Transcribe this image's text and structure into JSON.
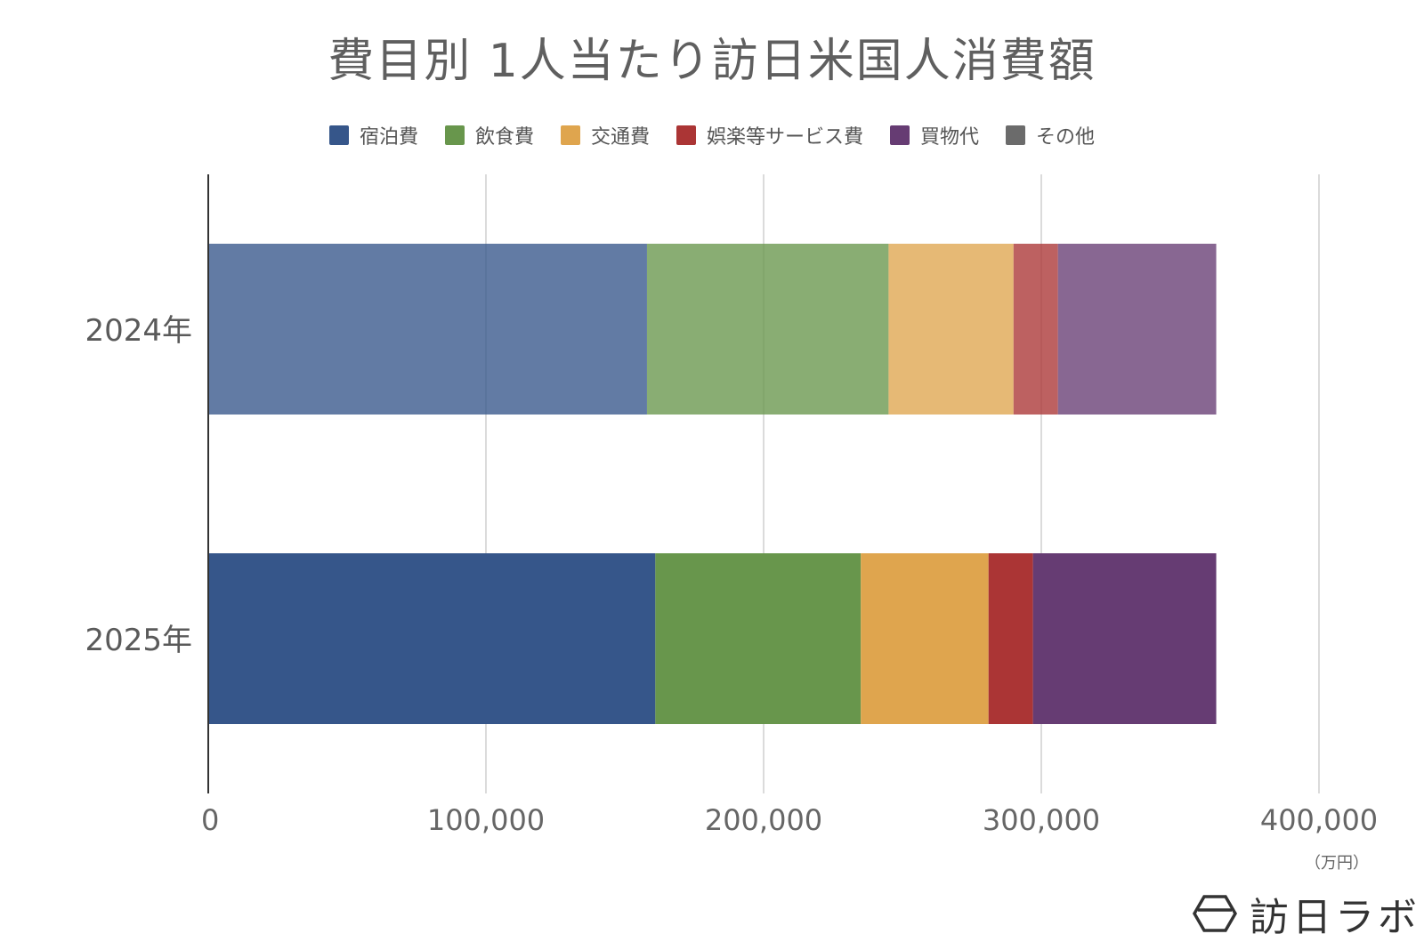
{
  "chart_data": {
    "type": "bar",
    "orientation": "horizontal",
    "stacked": true,
    "title": "費目別 1人当たり訪日米国人消費額",
    "categories": [
      "2024年",
      "2025年"
    ],
    "series": [
      {
        "name": "宿泊費",
        "values": [
          158000,
          161000
        ],
        "color": "#36568a"
      },
      {
        "name": "飲食費",
        "values": [
          87000,
          74000
        ],
        "color": "#68964c"
      },
      {
        "name": "交通費",
        "values": [
          45000,
          46000
        ],
        "color": "#dfa54e"
      },
      {
        "name": "娯楽等サービス費",
        "values": [
          16000,
          16000
        ],
        "color": "#ab3535"
      },
      {
        "name": "買物代",
        "values": [
          57000,
          66000
        ],
        "color": "#663c73"
      },
      {
        "name": "その他",
        "values": [
          0,
          0
        ],
        "color": "#6b6b6b"
      }
    ],
    "category_opacity": [
      0.78,
      1.0
    ],
    "xlim": [
      0,
      400000
    ],
    "xticks": [
      "0",
      "100,000",
      "200,000",
      "300,000",
      "400,000"
    ],
    "xtick_values": [
      0,
      100000,
      200000,
      300000,
      400000
    ],
    "x_unit": "（万円）",
    "grid": true,
    "legend": "top-center"
  },
  "brand": {
    "name": "訪日ラボ",
    "icon": "hexagon-logo-icon"
  }
}
